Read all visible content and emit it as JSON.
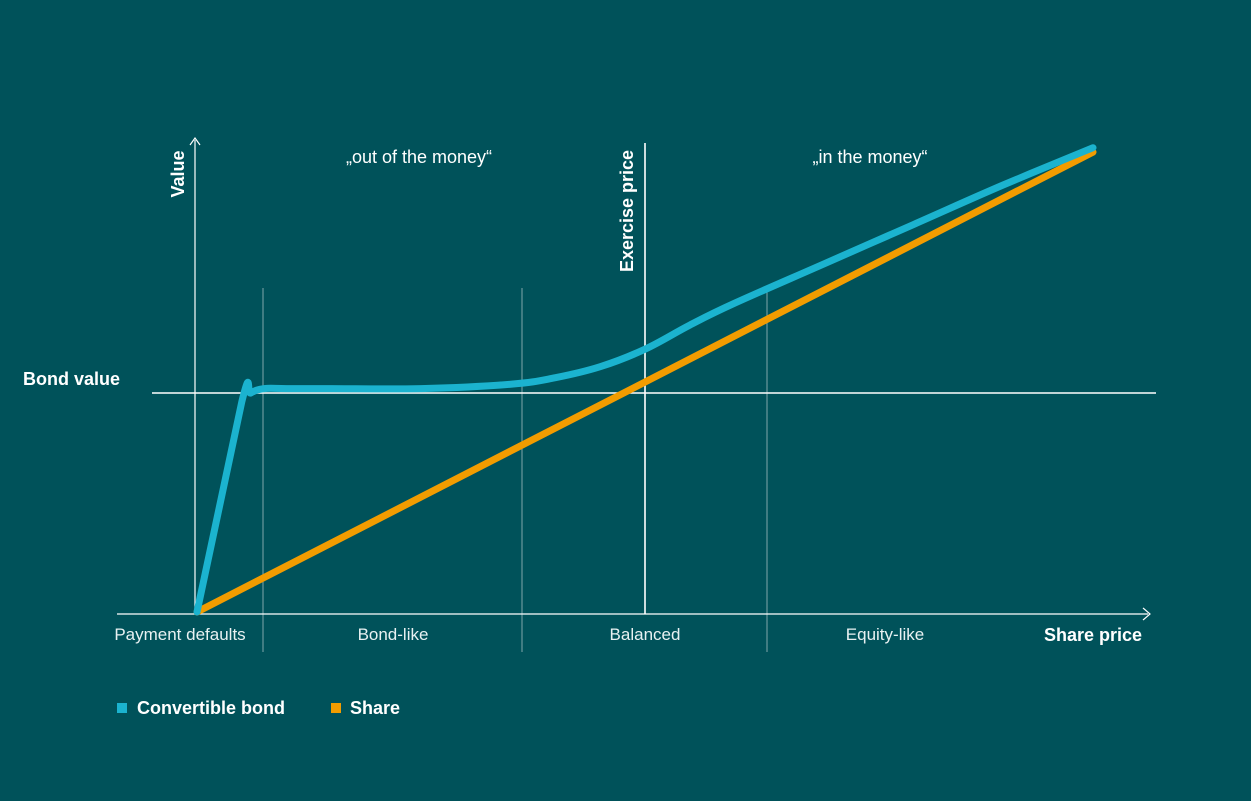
{
  "colors": {
    "background": "#00525A",
    "convertible": "#1BB3CF",
    "share": "#F29C00",
    "axis": "#ffffff",
    "divider": "#7fa7ab"
  },
  "chart_data": {
    "type": "line",
    "title": "",
    "xlabel": "Share price",
    "ylabel": "Value",
    "reference_lines": {
      "bond_value_label": "Bond value",
      "exercise_price_label": "Exercise price"
    },
    "zones_top": [
      {
        "label": "„out of the money“"
      },
      {
        "label": "„in the money“"
      }
    ],
    "categories": [
      "Payment defaults",
      "Bond-like",
      "Balanced",
      "Equity-like"
    ],
    "xlim": [
      0,
      10
    ],
    "ylim": [
      0,
      10
    ],
    "series": [
      {
        "name": "Convertible bond",
        "color": "#1BB3CF",
        "x": [
          0,
          0.5,
          0.6,
          0.75,
          1.0,
          1.5,
          2.5,
          3.5,
          4.0,
          4.5,
          5.0,
          5.5,
          6.0,
          7.0,
          8.0,
          9.0,
          10.0
        ],
        "y": [
          0,
          4.8,
          5.0,
          5.1,
          5.1,
          5.1,
          5.1,
          5.2,
          5.35,
          5.6,
          6.0,
          6.55,
          7.05,
          7.95,
          8.85,
          9.75,
          10.6
        ]
      },
      {
        "name": "Share",
        "color": "#F29C00",
        "x": [
          0,
          10
        ],
        "y": [
          0,
          10.5
        ]
      }
    ],
    "legend": {
      "placement": "bottom-left"
    },
    "grid": false
  }
}
